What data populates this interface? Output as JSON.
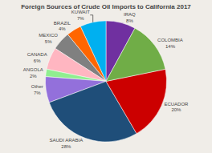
{
  "chart_data": {
    "type": "pie",
    "title": "Foreign Sources of Crude Oil Imports to California 2017",
    "categories": [
      "IRAQ",
      "KUWAIT",
      "BRAZIL",
      "MEXICO",
      "CANADA",
      "ANGOLA",
      "Other",
      "SAUDI ARABIA",
      "ECUADOR",
      "COLOMBIA"
    ],
    "values": [
      8,
      7,
      4,
      5,
      6,
      2,
      7,
      28,
      20,
      14
    ],
    "value_labels": [
      "8%",
      "7%",
      "4%",
      "5%",
      "6%",
      "2%",
      "7%",
      "28%",
      "20%",
      "14%"
    ],
    "colors": [
      "#7030A0",
      "#00B0F0",
      "#FF6600",
      "#808080",
      "#FFB6C1",
      "#90EE90",
      "#9370DB",
      "#1F4E79",
      "#CC0000",
      "#70AD47"
    ],
    "data_labels": true
  }
}
